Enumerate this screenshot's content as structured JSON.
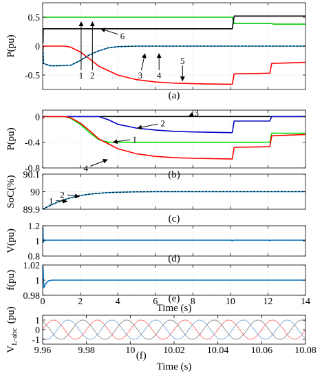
{
  "chart_data": [
    {
      "type": "line",
      "caption": "(a)",
      "ylabel": "P(pu)",
      "xlim": [
        0,
        14
      ],
      "ylim": [
        -0.75,
        0.75
      ],
      "yticks": [
        -0.5,
        0,
        0.5
      ],
      "yticklabels": [
        "-0.5",
        "0",
        "0.5"
      ],
      "xticks": [
        0,
        2,
        4,
        6,
        8,
        10,
        12,
        14
      ],
      "xtick_labels_shown": false,
      "grid": true,
      "series": [
        {
          "color": "#00c800",
          "style": "solid",
          "x": [
            0,
            0.05,
            0.06,
            10.1,
            10.2,
            12.2,
            12.3,
            14
          ],
          "y": [
            0.5,
            0.5,
            0.5,
            0.5,
            0.39,
            0.39,
            0.38,
            0.38
          ]
        },
        {
          "color": "#000000",
          "style": "solid",
          "x": [
            0,
            0.02,
            0.03,
            10.1,
            10.2,
            14
          ],
          "y": [
            0.05,
            0.05,
            0.3,
            0.3,
            0.52,
            0.52
          ]
        },
        {
          "color": "#ff0000",
          "style": "solid",
          "x": [
            0,
            0.02,
            0.05,
            1.2,
            1.5,
            2,
            2.5,
            3,
            4,
            5,
            6,
            7,
            8,
            9,
            10,
            10.1,
            10.2,
            12,
            12.1,
            12.2,
            14
          ],
          "y": [
            -0.05,
            -0.05,
            0,
            0,
            -0.02,
            -0.1,
            -0.22,
            -0.35,
            -0.5,
            -0.58,
            -0.62,
            -0.64,
            -0.65,
            -0.655,
            -0.66,
            -0.66,
            -0.48,
            -0.47,
            -0.47,
            -0.3,
            -0.28
          ]
        },
        {
          "color": "#00a8ff",
          "style": "solid",
          "x": [
            0,
            0.02,
            0.05,
            0.4,
            0.8,
            1.5,
            2,
            2.5,
            3,
            3.5,
            4,
            5,
            6,
            14
          ],
          "y": [
            -0.05,
            -0.05,
            -0.3,
            -0.34,
            -0.34,
            -0.33,
            -0.25,
            -0.15,
            -0.08,
            -0.03,
            -0.01,
            0,
            0,
            0
          ]
        },
        {
          "color": "#000000",
          "style": "dashed",
          "x": [
            0,
            0.02,
            0.05,
            0.4,
            0.8,
            1.5,
            2,
            2.5,
            3,
            3.5,
            4,
            5,
            6,
            14
          ],
          "y": [
            -0.05,
            -0.05,
            -0.3,
            -0.34,
            -0.34,
            -0.33,
            -0.25,
            -0.15,
            -0.08,
            -0.03,
            -0.01,
            0,
            0,
            0
          ]
        }
      ],
      "annotations": [
        {
          "text": "1",
          "x": 2.05,
          "y": -0.5,
          "ax": 2.05,
          "ay": 0.42
        },
        {
          "text": "2",
          "x": 2.65,
          "y": -0.5,
          "ax": 2.65,
          "ay": 0.42
        },
        {
          "text": "3",
          "x": 5.2,
          "y": -0.5,
          "ax": 5.45,
          "ay": -0.13
        },
        {
          "text": "4",
          "x": 6.2,
          "y": -0.5,
          "ax": 6.2,
          "ay": -0.13
        },
        {
          "text": "5",
          "x": 7.45,
          "y": -0.25,
          "ax": 7.45,
          "ay": -0.6
        },
        {
          "text": "6",
          "x": 4.25,
          "y": 0.18,
          "ax": 3.1,
          "ay": 0.3
        }
      ]
    },
    {
      "type": "line",
      "caption": "(b)",
      "ylabel": "P(pu)",
      "xlim": [
        0,
        14
      ],
      "ylim": [
        -0.8,
        0.1
      ],
      "yticks": [
        -0.8,
        -0.4,
        0
      ],
      "yticklabels": [
        "-0.8",
        "-0.4",
        "0"
      ],
      "xticks": [
        0,
        2,
        4,
        6,
        8,
        10,
        12,
        14
      ],
      "xtick_labels_shown": false,
      "grid": true,
      "series": [
        {
          "color": "#000000",
          "style": "solid",
          "x": [
            0,
            14
          ],
          "y": [
            0,
            0
          ]
        },
        {
          "color": "#0000c8",
          "style": "solid",
          "x": [
            0,
            1.2,
            3.0,
            3.5,
            4,
            5,
            6,
            7,
            8,
            9,
            10,
            10.1,
            10.2,
            12,
            12.1,
            12.2,
            14
          ],
          "y": [
            0,
            0,
            0,
            -0.05,
            -0.12,
            -0.18,
            -0.21,
            -0.23,
            -0.24,
            -0.245,
            -0.25,
            -0.25,
            -0.07,
            -0.07,
            -0.07,
            0,
            0
          ]
        },
        {
          "color": "#00e000",
          "style": "solid",
          "x": [
            0,
            1.2,
            1.5,
            2,
            2.5,
            3,
            3.5,
            10,
            10.1,
            10.2,
            12,
            12.1,
            12.2,
            14
          ],
          "y": [
            0,
            0,
            -0.03,
            -0.12,
            -0.25,
            -0.36,
            -0.4,
            -0.4,
            -0.4,
            -0.4,
            -0.4,
            -0.4,
            -0.26,
            -0.26
          ]
        },
        {
          "color": "#ff0000",
          "style": "solid",
          "x": [
            0,
            0.02,
            0.05,
            1.2,
            1.5,
            2,
            2.5,
            3,
            4,
            5,
            6,
            7,
            8,
            9,
            10,
            10.1,
            10.2,
            12,
            12.1,
            12.2,
            14
          ],
          "y": [
            -0.02,
            -0.03,
            0,
            0,
            -0.02,
            -0.1,
            -0.22,
            -0.35,
            -0.5,
            -0.58,
            -0.62,
            -0.64,
            -0.65,
            -0.655,
            -0.66,
            -0.66,
            -0.48,
            -0.47,
            -0.47,
            -0.3,
            -0.28
          ]
        }
      ],
      "annotations": [
        {
          "text": "3",
          "x": 8.2,
          "y": 0.06,
          "ax": 7.8,
          "ay": 0.01
        },
        {
          "text": "2",
          "x": 6.4,
          "y": -0.1,
          "ax": 5.05,
          "ay": -0.18
        },
        {
          "text": "1",
          "x": 4.9,
          "y": -0.35,
          "ax": 3.75,
          "ay": -0.4
        },
        {
          "text": "4",
          "x": 2.3,
          "y": -0.8,
          "ax": 3.45,
          "ay": -0.67
        }
      ]
    },
    {
      "type": "line",
      "caption": "(c)",
      "ylabel": "SoC(%)",
      "xlim": [
        0,
        14
      ],
      "ylim": [
        89.9,
        90.1
      ],
      "yticks": [
        89.9,
        90,
        90.1
      ],
      "yticklabels": [
        "89.9",
        "90",
        "90.1"
      ],
      "xticks": [
        0,
        2,
        4,
        6,
        8,
        10,
        12,
        14
      ],
      "xtick_labels_shown": false,
      "grid": true,
      "series": [
        {
          "color": "#00a8ff",
          "style": "solid",
          "x": [
            0,
            0.5,
            1,
            1.5,
            2,
            2.5,
            3,
            3.5,
            4,
            4.5,
            5,
            6,
            7,
            14
          ],
          "y": [
            89.9,
            89.927,
            89.949,
            89.966,
            89.978,
            89.986,
            89.991,
            89.995,
            89.997,
            89.998,
            89.999,
            90.0,
            90.0,
            90.0
          ]
        },
        {
          "color": "#000000",
          "style": "dashed",
          "x": [
            0,
            0.5,
            1,
            1.5,
            2,
            2.5,
            3,
            3.5,
            4,
            4.5,
            5,
            6,
            7,
            14
          ],
          "y": [
            89.9,
            89.927,
            89.949,
            89.966,
            89.978,
            89.986,
            89.991,
            89.995,
            89.997,
            89.998,
            89.999,
            90.0,
            90.0,
            90.0
          ]
        }
      ],
      "annotations": [
        {
          "text": "1",
          "x": 0.45,
          "y": 89.95,
          "ax": 1.3,
          "ay": 89.945
        },
        {
          "text": "2",
          "x": 1.05,
          "y": 89.985,
          "ax": 1.95,
          "ay": 89.972
        }
      ]
    },
    {
      "type": "line",
      "caption": "(d)",
      "ylabel": "V(pu)",
      "xlim": [
        0,
        14
      ],
      "ylim": [
        0.8,
        1.2
      ],
      "yticks": [
        0.8,
        1,
        1.2
      ],
      "yticklabels": [
        "0.8",
        "1",
        "1.2"
      ],
      "xticks": [
        0,
        2,
        4,
        6,
        8,
        10,
        12,
        14
      ],
      "xtick_labels_shown": false,
      "grid": true,
      "series": [
        {
          "color": "#0070c0",
          "style": "solid",
          "x": [
            0,
            0.02,
            0.03,
            0.06,
            0.1,
            10.05,
            10.1,
            10.15,
            12.05,
            12.1,
            12.15,
            14
          ],
          "y": [
            1.0,
            1.17,
            0.98,
            1.02,
            1.01,
            1.01,
            1.0,
            1.01,
            1.01,
            1.0,
            1.01,
            1.01
          ]
        }
      ]
    },
    {
      "type": "line",
      "caption": "(e)",
      "ylabel": "f(pu)",
      "xlabel": "Time (s)",
      "xlim": [
        0,
        14
      ],
      "ylim": [
        0.98,
        1.02
      ],
      "yticks": [
        0.98,
        1,
        1.02
      ],
      "yticklabels": [
        "0.98",
        "1",
        "1.02"
      ],
      "xticks": [
        0,
        2,
        4,
        6,
        8,
        10,
        12,
        14
      ],
      "xtick_labels_shown": true,
      "grid": true,
      "series": [
        {
          "color": "#0070c0",
          "style": "solid",
          "x": [
            0,
            0.02,
            0.06,
            0.15,
            0.3,
            0.5,
            14
          ],
          "y": [
            1.0,
            1.018,
            0.99,
            0.995,
            0.999,
            1.0,
            1.0
          ]
        }
      ]
    },
    {
      "type": "line",
      "caption": "(f)",
      "ylabel": "V",
      "ylabel_subscript": "L-abc",
      "ylabel_unit": "(pu)",
      "xlabel": "Time (s)",
      "xlim": [
        9.96,
        10.08
      ],
      "ylim": [
        -1.5,
        1.5
      ],
      "yticks": [
        -1,
        0,
        1
      ],
      "yticklabels": [
        "-1",
        "0",
        "1"
      ],
      "xticks": [
        9.96,
        9.98,
        10,
        10.02,
        10.04,
        10.06,
        10.08
      ],
      "xticklabels": [
        "9.96",
        "9.98",
        "10",
        "10.02",
        "10.04",
        "10.06",
        "10.08"
      ],
      "grid": true,
      "waveform": {
        "type": "three-phase sine",
        "amplitude": 1,
        "frequency_hz": 50,
        "phase_shift_deg": 120
      },
      "series": [
        {
          "color": "#ff6b6b",
          "style": "solid"
        },
        {
          "color": "#7aa8d8",
          "style": "solid"
        },
        {
          "color": "#8a8a8a",
          "style": "solid"
        }
      ]
    }
  ]
}
